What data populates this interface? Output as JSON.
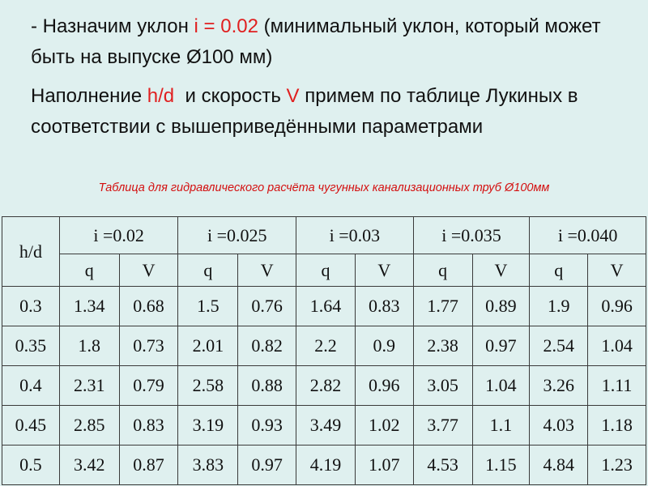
{
  "intro": {
    "line1_prefix": "- Назначим уклон ",
    "line1_slope": "i = 0.02",
    "line1_suffix": " (минимальный уклон, который может быть на выпуске Ø100 мм)",
    "line2_prefix": "Наполнение ",
    "line2_hd": "h/d",
    "line2_mid": "  и скорость ",
    "line2_v": "V",
    "line2_suffix": " примем по таблице Лукиных в соответствии с вышеприведёнными параметрами"
  },
  "caption": "Таблица для гидравлического расчёта чугунных канализационных труб Ø100мм",
  "table": {
    "row_header": "h/d",
    "slopes": [
      "i =0.02",
      "i =0.025",
      "i =0.03",
      "i =0.035",
      "i =0.040"
    ],
    "sub_q": "q",
    "sub_v": "V",
    "rows": [
      {
        "hd": "0.3",
        "vals": [
          "1.34",
          "0.68",
          "1.5",
          "0.76",
          "1.64",
          "0.83",
          "1.77",
          "0.89",
          "1.9",
          "0.96"
        ]
      },
      {
        "hd": "0.35",
        "vals": [
          "1.8",
          "0.73",
          "2.01",
          "0.82",
          "2.2",
          "0.9",
          "2.38",
          "0.97",
          "2.54",
          "1.04"
        ]
      },
      {
        "hd": "0.4",
        "vals": [
          "2.31",
          "0.79",
          "2.58",
          "0.88",
          "2.82",
          "0.96",
          "3.05",
          "1.04",
          "3.26",
          "1.11"
        ]
      },
      {
        "hd": "0.45",
        "vals": [
          "2.85",
          "0.83",
          "3.19",
          "0.93",
          "3.49",
          "1.02",
          "3.77",
          "1.1",
          "4.03",
          "1.18"
        ]
      },
      {
        "hd": "0.5",
        "vals": [
          "3.42",
          "0.87",
          "3.83",
          "0.97",
          "4.19",
          "1.07",
          "4.53",
          "1.15",
          "4.84",
          "1.23"
        ]
      }
    ]
  },
  "colors": {
    "background": "#dff0ef",
    "accent_red": "#e02020",
    "text": "#111111"
  }
}
